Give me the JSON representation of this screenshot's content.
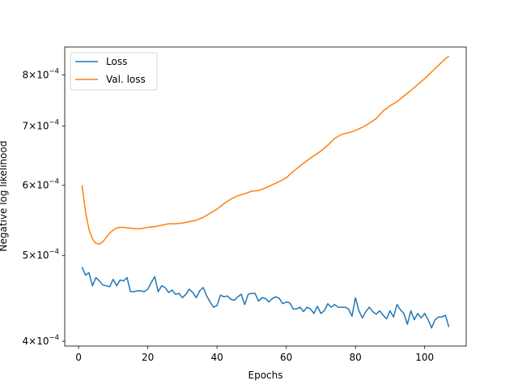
{
  "chart_data": {
    "type": "line",
    "xlabel": "Epochs",
    "ylabel": "Negative log likelihood",
    "xlim": [
      -4,
      112
    ],
    "ylim": [
      0.000395,
      0.00086
    ],
    "yscale": "log",
    "grid": false,
    "legend_position": "upper-left",
    "x_ticks": [
      0,
      20,
      40,
      60,
      80,
      100
    ],
    "x_tick_labels": [
      "0",
      "20",
      "40",
      "60",
      "80",
      "100"
    ],
    "y_ticks": [
      0.0004,
      0.0005,
      0.0006,
      0.0007,
      0.0008
    ],
    "y_tick_labels": [
      {
        "mantissa": "4",
        "exponent": "−4"
      },
      {
        "mantissa": "5",
        "exponent": "−4"
      },
      {
        "mantissa": "6",
        "exponent": "−4"
      },
      {
        "mantissa": "7",
        "exponent": "−4"
      },
      {
        "mantissa": "8",
        "exponent": "−4"
      }
    ],
    "series": [
      {
        "name": "Loss",
        "color": "#1f77b4",
        "x": [
          1,
          2,
          3,
          4,
          5,
          6,
          7,
          8,
          9,
          10,
          11,
          12,
          13,
          14,
          15,
          16,
          17,
          18,
          19,
          20,
          21,
          22,
          23,
          24,
          25,
          26,
          27,
          28,
          29,
          30,
          31,
          32,
          33,
          34,
          35,
          36,
          37,
          38,
          39,
          40,
          41,
          42,
          43,
          44,
          45,
          46,
          47,
          48,
          49,
          50,
          51,
          52,
          53,
          54,
          55,
          56,
          57,
          58,
          59,
          60,
          61,
          62,
          63,
          64,
          65,
          66,
          67,
          68,
          69,
          70,
          71,
          72,
          73,
          74,
          75,
          76,
          77,
          78,
          79,
          80,
          81,
          82,
          83,
          84,
          85,
          86,
          87,
          88,
          89,
          90,
          91,
          92,
          93,
          94,
          95,
          96,
          97,
          98,
          99,
          100,
          101,
          102,
          103,
          104,
          105,
          106,
          107
        ],
        "y": [
          0.000485,
          0.000475,
          0.000478,
          0.000462,
          0.000472,
          0.000468,
          0.000463,
          0.000462,
          0.000461,
          0.00047,
          0.000462,
          0.000469,
          0.000468,
          0.000472,
          0.000455,
          0.000455,
          0.000456,
          0.000456,
          0.000455,
          0.000458,
          0.000466,
          0.000473,
          0.000455,
          0.000462,
          0.00046,
          0.000454,
          0.000457,
          0.000452,
          0.000453,
          0.000448,
          0.000452,
          0.000458,
          0.000454,
          0.000448,
          0.000456,
          0.00046,
          0.00045,
          0.000443,
          0.000437,
          0.000439,
          0.000451,
          0.000449,
          0.00045,
          0.000446,
          0.000445,
          0.000449,
          0.000452,
          0.00044,
          0.000452,
          0.000453,
          0.000453,
          0.000444,
          0.000448,
          0.000447,
          0.000443,
          0.000447,
          0.000449,
          0.000447,
          0.000441,
          0.000443,
          0.000442,
          0.000435,
          0.000435,
          0.000437,
          0.000432,
          0.000437,
          0.000435,
          0.00043,
          0.000438,
          0.00043,
          0.000433,
          0.000441,
          0.000437,
          0.00044,
          0.000437,
          0.000437,
          0.000437,
          0.000435,
          0.000427,
          0.000448,
          0.000433,
          0.000425,
          0.000432,
          0.000437,
          0.000432,
          0.000429,
          0.000433,
          0.000428,
          0.000424,
          0.000433,
          0.000426,
          0.00044,
          0.000434,
          0.00043,
          0.000418,
          0.000433,
          0.000423,
          0.00043,
          0.000425,
          0.00043,
          0.000423,
          0.000414,
          0.000423,
          0.000426,
          0.000426,
          0.000428,
          0.000415
        ]
      },
      {
        "name": "Val. loss",
        "color": "#ff7f0e",
        "x": [
          1,
          2,
          3,
          4,
          5,
          6,
          7,
          8,
          9,
          10,
          11,
          12,
          13,
          14,
          15,
          16,
          17,
          18,
          19,
          20,
          22,
          24,
          26,
          28,
          30,
          32,
          34,
          36,
          38,
          40,
          42,
          44,
          46,
          48,
          50,
          52,
          54,
          56,
          58,
          60,
          62,
          64,
          66,
          68,
          70,
          72,
          74,
          76,
          78,
          80,
          82,
          84,
          86,
          88,
          90,
          92,
          94,
          96,
          98,
          100,
          102,
          104,
          106,
          107
        ],
        "y": [
          0.0006,
          0.00056,
          0.000535,
          0.000522,
          0.000516,
          0.000515,
          0.000518,
          0.000524,
          0.00053,
          0.000534,
          0.000537,
          0.000538,
          0.000538,
          0.000537,
          0.000537,
          0.000536,
          0.000536,
          0.000536,
          0.000537,
          0.000538,
          0.000539,
          0.000541,
          0.000543,
          0.000543,
          0.000544,
          0.000546,
          0.000548,
          0.000552,
          0.000558,
          0.000564,
          0.000572,
          0.000579,
          0.000584,
          0.000587,
          0.000591,
          0.000592,
          0.000596,
          0.000601,
          0.000606,
          0.000612,
          0.000622,
          0.000631,
          0.00064,
          0.000648,
          0.000656,
          0.000666,
          0.000678,
          0.000685,
          0.000688,
          0.000692,
          0.000698,
          0.000705,
          0.000714,
          0.000728,
          0.000738,
          0.000746,
          0.000757,
          0.000768,
          0.00078,
          0.000792,
          0.000806,
          0.00082,
          0.000834,
          0.00084
        ]
      }
    ]
  }
}
